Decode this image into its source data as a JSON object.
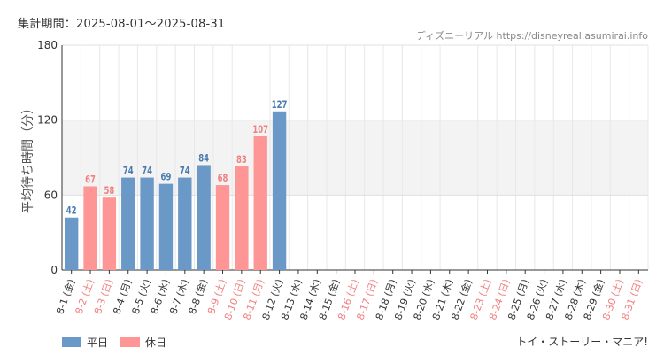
{
  "header": {
    "period": "集計期間：2025-08-01～2025-08-31",
    "source": "ディズニーリアル https://disneyreal.asumirai.info"
  },
  "footer": {
    "attraction": "トイ・ストーリー・マニア!"
  },
  "legend": {
    "weekday_label": "平日",
    "holiday_label": "休日"
  },
  "colors": {
    "weekday": "#6a99c8",
    "holiday": "#ff9696",
    "weekday_label": "#4a7bb0",
    "holiday_label": "#f08080",
    "band": "#f3f3f3"
  },
  "chart_data": {
    "type": "bar",
    "ylabel": "平均待ち時間（分）",
    "ylim": [
      0,
      180
    ],
    "yticks": [
      0,
      60,
      120,
      180
    ],
    "grid": true,
    "shaded_band": [
      60,
      120
    ],
    "legend_position": "bottom-left",
    "categories": [
      "8-1 (金)",
      "8-2 (土)",
      "8-3 (日)",
      "8-4 (月)",
      "8-5 (火)",
      "8-6 (水)",
      "8-7 (木)",
      "8-8 (金)",
      "8-9 (土)",
      "8-10 (日)",
      "8-11 (月)",
      "8-12 (火)",
      "8-13 (水)",
      "8-14 (木)",
      "8-15 (金)",
      "8-16 (土)",
      "8-17 (日)",
      "8-18 (月)",
      "8-19 (火)",
      "8-20 (水)",
      "8-21 (木)",
      "8-22 (金)",
      "8-23 (土)",
      "8-24 (日)",
      "8-25 (月)",
      "8-26 (火)",
      "8-27 (水)",
      "8-28 (木)",
      "8-29 (金)",
      "8-30 (土)",
      "8-31 (日)"
    ],
    "day_type": [
      "weekday",
      "holiday",
      "holiday",
      "weekday",
      "weekday",
      "weekday",
      "weekday",
      "weekday",
      "holiday",
      "holiday",
      "holiday",
      "weekday",
      "weekday",
      "weekday",
      "weekday",
      "holiday",
      "holiday",
      "weekday",
      "weekday",
      "weekday",
      "weekday",
      "weekday",
      "holiday",
      "holiday",
      "weekday",
      "weekday",
      "weekday",
      "weekday",
      "weekday",
      "holiday",
      "holiday"
    ],
    "values": [
      42,
      67,
      58,
      74,
      74,
      69,
      74,
      84,
      68,
      83,
      107,
      127,
      null,
      null,
      null,
      null,
      null,
      null,
      null,
      null,
      null,
      null,
      null,
      null,
      null,
      null,
      null,
      null,
      null,
      null,
      null
    ]
  }
}
